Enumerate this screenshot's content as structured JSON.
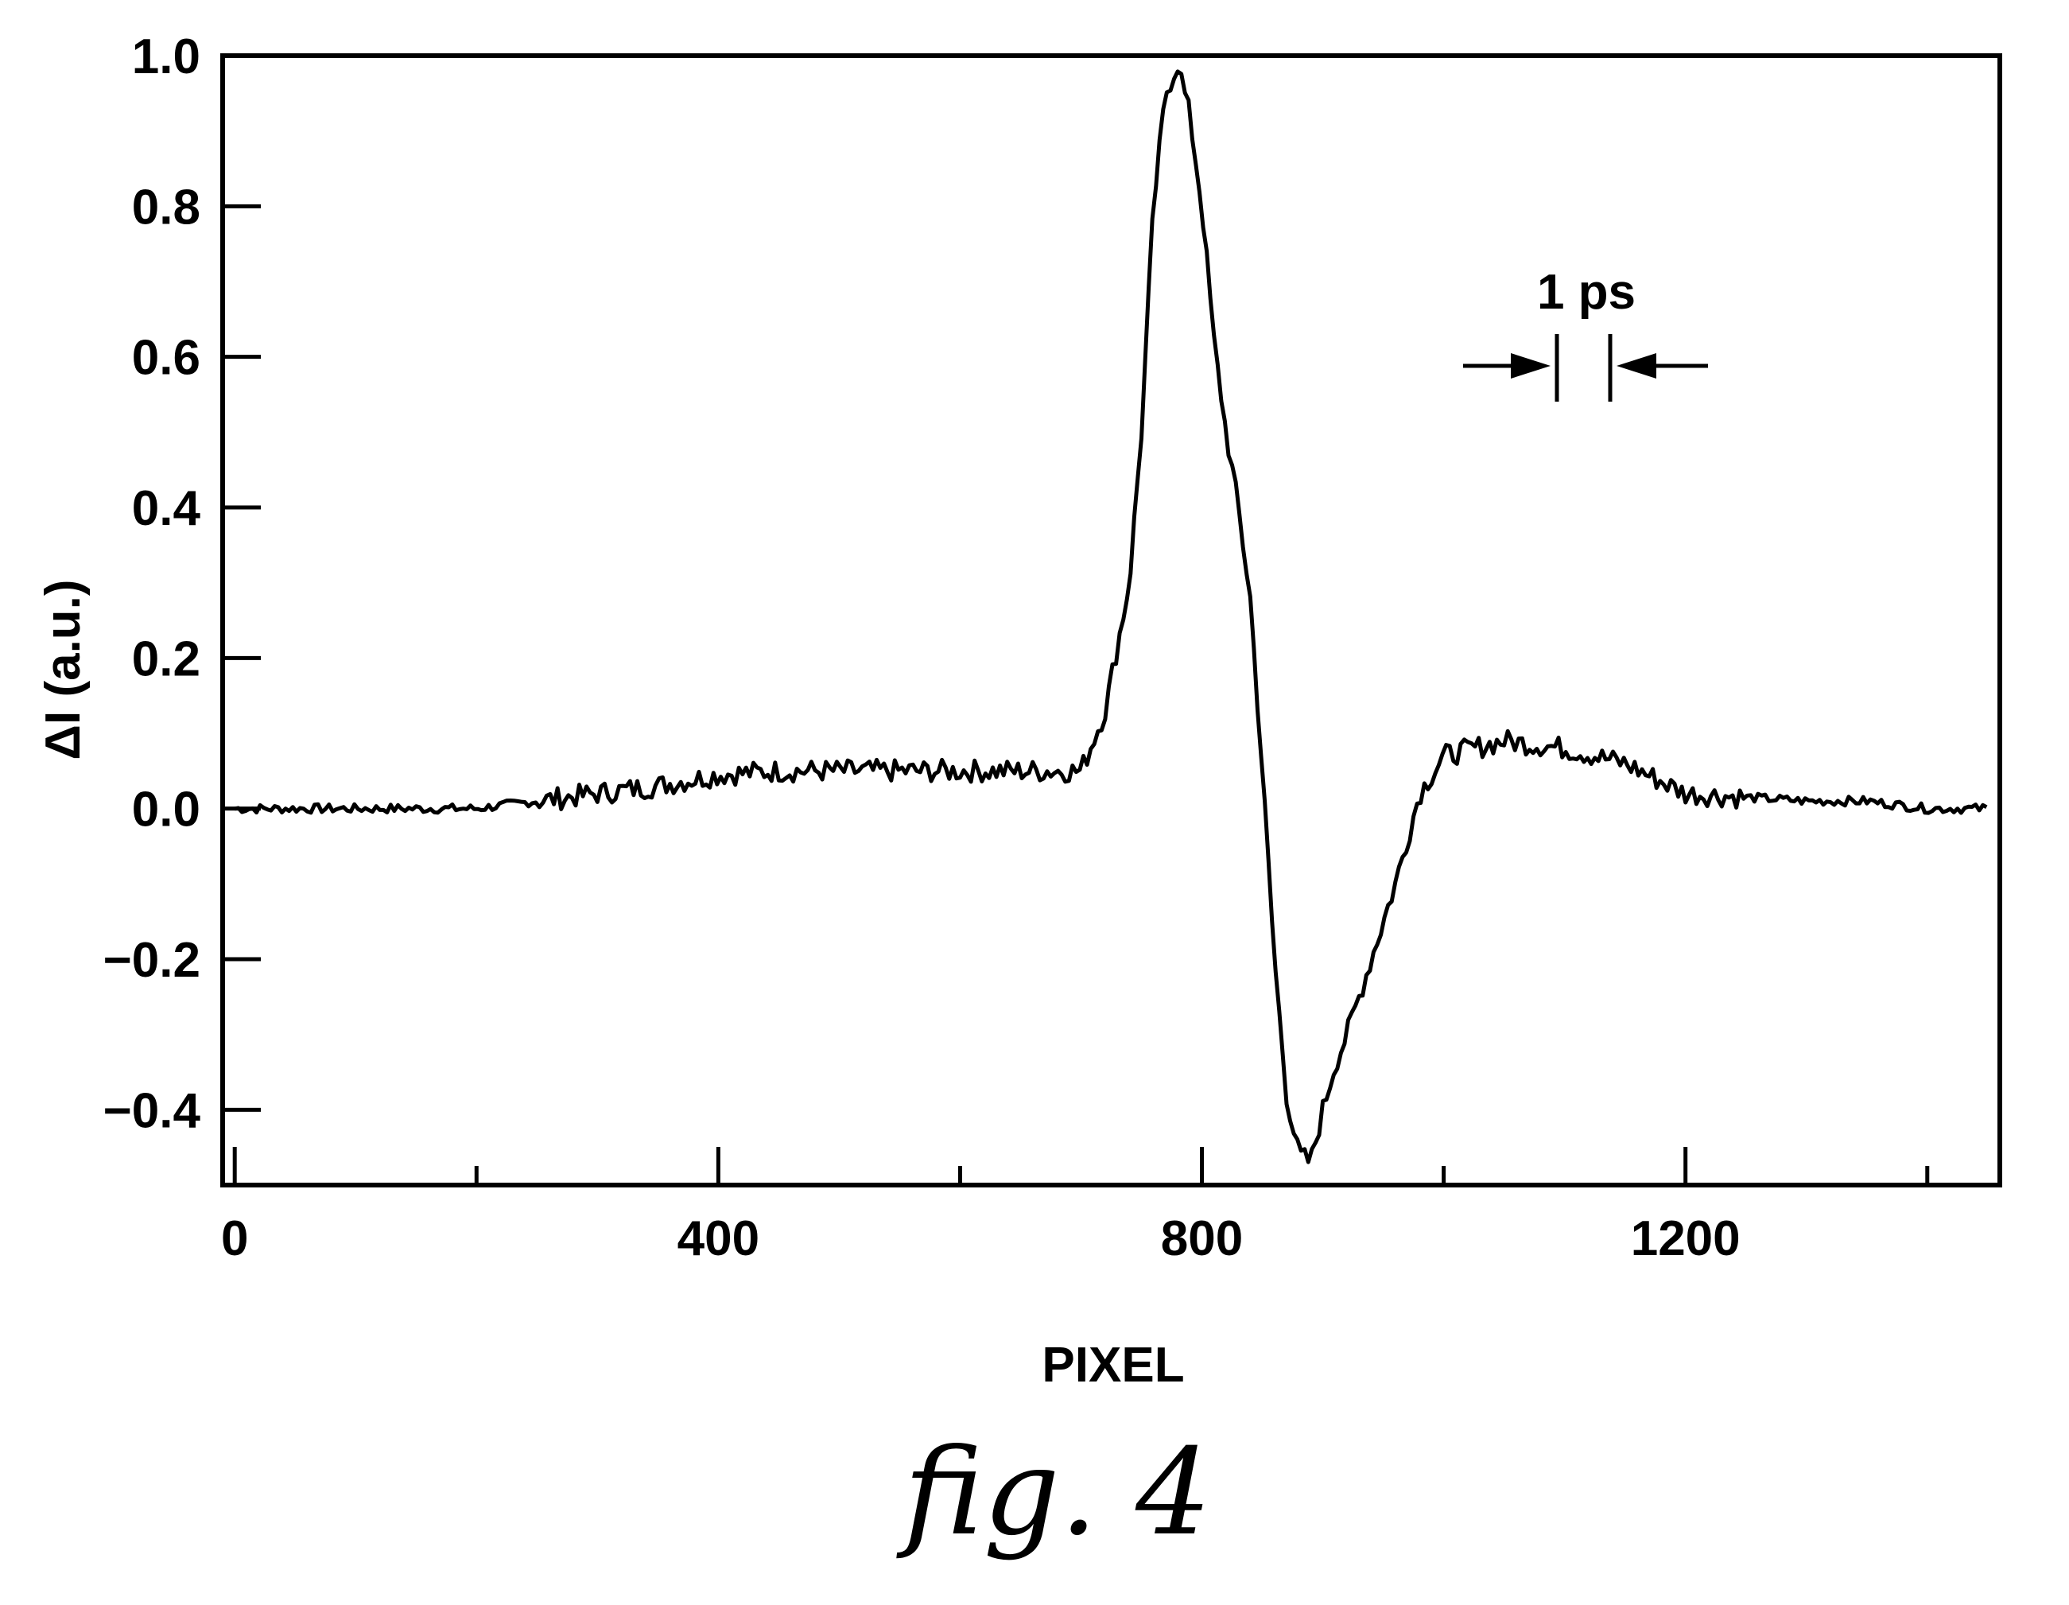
{
  "figure_caption": "fig. 4",
  "chart_data": {
    "type": "line",
    "xlabel": "PIXEL",
    "ylabel": "ΔI (a.u.)",
    "xlim": [
      -10,
      1460
    ],
    "ylim": [
      -0.5,
      1.0
    ],
    "x_ticks": [
      0,
      400,
      800,
      1200
    ],
    "x_tick_labels": [
      "0",
      "400",
      "800",
      "1200"
    ],
    "x_minor_ticks": [
      200,
      600,
      1000,
      1400
    ],
    "y_ticks": [
      -0.4,
      -0.2,
      0.0,
      0.2,
      0.4,
      0.6,
      0.8,
      1.0
    ],
    "y_tick_labels": [
      "−0.4",
      "−0.2",
      "0.0",
      "0.2",
      "0.4",
      "0.6",
      "0.8",
      "1.0"
    ],
    "grid": false,
    "annotation": {
      "text": "1 ps"
    },
    "series": [
      {
        "x": [
          0,
          50,
          100,
          150,
          200,
          250,
          300,
          350,
          400,
          450,
          500,
          550,
          600,
          650,
          700,
          720,
          740,
          750,
          760,
          770,
          780,
          790,
          800,
          810,
          820,
          830,
          840,
          850,
          860,
          870,
          880,
          890,
          900,
          910,
          920,
          940,
          960,
          980,
          1000,
          1050,
          1100,
          1150,
          1200,
          1250,
          1300,
          1350,
          1400,
          1450
        ],
        "y": [
          0.0,
          0.0,
          0.0,
          0.0,
          0.0,
          0.01,
          0.02,
          0.03,
          0.045,
          0.05,
          0.05,
          0.05,
          0.05,
          0.05,
          0.05,
          0.13,
          0.3,
          0.5,
          0.8,
          0.95,
          0.99,
          0.92,
          0.8,
          0.62,
          0.5,
          0.4,
          0.28,
          0.05,
          -0.2,
          -0.38,
          -0.46,
          -0.47,
          -0.4,
          -0.34,
          -0.3,
          -0.2,
          -0.1,
          0.02,
          0.07,
          0.09,
          0.08,
          0.06,
          0.02,
          0.015,
          0.01,
          0.01,
          0.0,
          0.0
        ]
      }
    ]
  }
}
